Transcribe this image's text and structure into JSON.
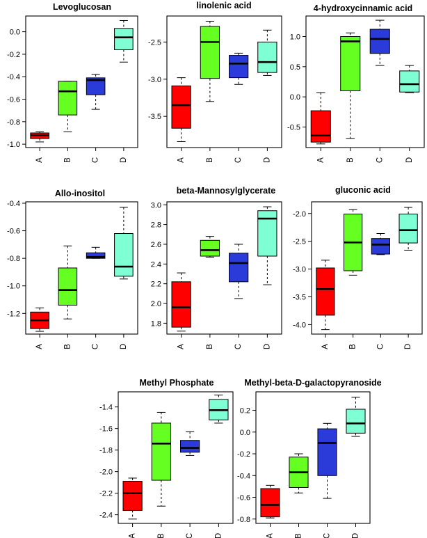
{
  "colors": {
    "A": "#ff0000",
    "B": "#66ff22",
    "C": "#2b3bd9",
    "D": "#7fffd4"
  },
  "chart_data": [
    {
      "type": "box",
      "title": "Levoglucosan",
      "categories": [
        "A",
        "B",
        "C",
        "D"
      ],
      "yticks": [
        -1.0,
        -0.8,
        -0.6,
        -0.4,
        -0.2,
        0.0
      ],
      "ytick_labels": [
        "-1.0",
        "-0.8",
        "-0.6",
        "-0.4",
        "-0.2",
        "0.0"
      ],
      "ylim": [
        -1.03,
        0.14
      ],
      "boxes": [
        {
          "min": -0.98,
          "q1": -0.95,
          "median": -0.92,
          "q3": -0.9,
          "max": -0.89
        },
        {
          "min": -0.89,
          "q1": -0.74,
          "median": -0.53,
          "q3": -0.44,
          "max": -0.44
        },
        {
          "min": -0.69,
          "q1": -0.56,
          "median": -0.43,
          "q3": -0.41,
          "max": -0.38
        },
        {
          "min": -0.27,
          "q1": -0.16,
          "median": -0.05,
          "q3": 0.03,
          "max": 0.1
        }
      ]
    },
    {
      "type": "box",
      "title": "linolenic acid",
      "categories": [
        "A",
        "B",
        "C",
        "D"
      ],
      "yticks": [
        -3.5,
        -3.0,
        -2.5
      ],
      "ytick_labels": [
        "-3.5",
        "-3.0",
        "-2.5"
      ],
      "ylim": [
        -3.92,
        -2.15
      ],
      "boxes": [
        {
          "min": -3.84,
          "q1": -3.66,
          "median": -3.35,
          "q3": -3.09,
          "max": -2.98
        },
        {
          "min": -3.3,
          "q1": -2.99,
          "median": -2.5,
          "q3": -2.29,
          "max": -2.22
        },
        {
          "min": -3.07,
          "q1": -2.98,
          "median": -2.79,
          "q3": -2.68,
          "max": -2.65
        },
        {
          "min": -2.95,
          "q1": -2.91,
          "median": -2.77,
          "q3": -2.5,
          "max": -2.34
        }
      ]
    },
    {
      "type": "box",
      "title": "4-hydroxycinnamic acid",
      "categories": [
        "A",
        "B",
        "C",
        "D"
      ],
      "yticks": [
        -0.5,
        0.0,
        0.5,
        1.0
      ],
      "ytick_labels": [
        "-0.5",
        "0.0",
        "0.5",
        "1.0"
      ],
      "ylim": [
        -0.84,
        1.34
      ],
      "boxes": [
        {
          "min": -0.78,
          "q1": -0.75,
          "median": -0.64,
          "q3": -0.23,
          "max": 0.07
        },
        {
          "min": -0.69,
          "q1": 0.1,
          "median": 0.92,
          "q3": 1.0,
          "max": 1.06
        },
        {
          "min": 0.52,
          "q1": 0.72,
          "median": 0.96,
          "q3": 1.12,
          "max": 1.27
        },
        {
          "min": 0.07,
          "q1": 0.08,
          "median": 0.21,
          "q3": 0.43,
          "max": 0.52
        }
      ]
    },
    {
      "type": "box",
      "title": "Allo-inositol",
      "categories": [
        "A",
        "B",
        "C",
        "D"
      ],
      "yticks": [
        -1.2,
        -1.0,
        -0.8,
        -0.6,
        -0.4
      ],
      "ytick_labels": [
        "-1.2",
        "-1.0",
        "-0.8",
        "-0.6",
        "-0.4"
      ],
      "ylim": [
        -1.35,
        -0.39
      ],
      "boxes": [
        {
          "min": -1.33,
          "q1": -1.31,
          "median": -1.25,
          "q3": -1.19,
          "max": -1.16
        },
        {
          "min": -1.24,
          "q1": -1.14,
          "median": -1.03,
          "q3": -0.87,
          "max": -0.71
        },
        {
          "min": -0.8,
          "q1": -0.8,
          "median": -0.79,
          "q3": -0.76,
          "max": -0.72
        },
        {
          "min": -0.95,
          "q1": -0.93,
          "median": -0.86,
          "q3": -0.62,
          "max": -0.43
        }
      ]
    },
    {
      "type": "box",
      "title": "beta-Mannosylglycerate",
      "categories": [
        "A",
        "B",
        "C",
        "D"
      ],
      "yticks": [
        1.8,
        2.0,
        2.2,
        2.4,
        2.6,
        2.8,
        3.0
      ],
      "ytick_labels": [
        "1.8",
        "2.0",
        "2.2",
        "2.4",
        "2.6",
        "2.8",
        "3.0"
      ],
      "ylim": [
        1.69,
        3.03
      ],
      "boxes": [
        {
          "min": 1.72,
          "q1": 1.76,
          "median": 1.96,
          "q3": 2.22,
          "max": 2.31
        },
        {
          "min": 2.47,
          "q1": 2.48,
          "median": 2.54,
          "q3": 2.64,
          "max": 2.68
        },
        {
          "min": 2.05,
          "q1": 2.22,
          "median": 2.41,
          "q3": 2.51,
          "max": 2.6
        },
        {
          "min": 2.19,
          "q1": 2.48,
          "median": 2.86,
          "q3": 2.94,
          "max": 2.98
        }
      ]
    },
    {
      "type": "box",
      "title": "gluconic acid",
      "categories": [
        "A",
        "B",
        "C",
        "D"
      ],
      "yticks": [
        -4.0,
        -3.5,
        -3.0,
        -2.5,
        -2.0
      ],
      "ytick_labels": [
        "-4.0",
        "-3.5",
        "-3.0",
        "-2.5",
        "-2.0"
      ],
      "ylim": [
        -4.17,
        -1.79
      ],
      "boxes": [
        {
          "min": -4.09,
          "q1": -3.83,
          "median": -3.36,
          "q3": -2.98,
          "max": -2.84
        },
        {
          "min": -3.11,
          "q1": -3.03,
          "median": -2.52,
          "q3": -2.01,
          "max": -1.93
        },
        {
          "min": -2.74,
          "q1": -2.73,
          "median": -2.56,
          "q3": -2.45,
          "max": -2.36
        },
        {
          "min": -2.66,
          "q1": -2.53,
          "median": -2.3,
          "q3": -2.01,
          "max": -1.89
        }
      ]
    },
    {
      "type": "box",
      "title": "Methyl Phosphate",
      "categories": [
        "A",
        "B",
        "C",
        "D"
      ],
      "yticks": [
        -2.4,
        -2.2,
        -2.0,
        -1.8,
        -1.6,
        -1.4
      ],
      "ytick_labels": [
        "-2.4",
        "-2.2",
        "-2.0",
        "-1.8",
        "-1.6",
        "-1.4"
      ],
      "ylim": [
        -2.48,
        -1.26
      ],
      "boxes": [
        {
          "min": -2.44,
          "q1": -2.36,
          "median": -2.2,
          "q3": -2.09,
          "max": -2.06
        },
        {
          "min": -2.32,
          "q1": -2.08,
          "median": -1.74,
          "q3": -1.55,
          "max": -1.45
        },
        {
          "min": -1.85,
          "q1": -1.82,
          "median": -1.78,
          "q3": -1.71,
          "max": -1.63
        },
        {
          "min": -1.55,
          "q1": -1.52,
          "median": -1.43,
          "q3": -1.33,
          "max": -1.29
        }
      ]
    },
    {
      "type": "box",
      "title": "Methyl-beta-D-galactopyranoside",
      "categories": [
        "A",
        "B",
        "C",
        "D"
      ],
      "yticks": [
        -0.8,
        -0.6,
        -0.4,
        -0.2,
        0.0,
        0.2
      ],
      "ytick_labels": [
        "-0.8",
        "-0.6",
        "-0.4",
        "-0.2",
        "0.0",
        "0.2"
      ],
      "ylim": [
        -0.84,
        0.37
      ],
      "boxes": [
        {
          "min": -0.79,
          "q1": -0.78,
          "median": -0.67,
          "q3": -0.52,
          "max": -0.49
        },
        {
          "min": -0.56,
          "q1": -0.51,
          "median": -0.37,
          "q3": -0.23,
          "max": -0.2
        },
        {
          "min": -0.61,
          "q1": -0.4,
          "median": -0.1,
          "q3": 0.03,
          "max": 0.08
        },
        {
          "min": -0.04,
          "q1": -0.01,
          "median": 0.08,
          "q3": 0.21,
          "max": 0.32
        }
      ]
    }
  ]
}
